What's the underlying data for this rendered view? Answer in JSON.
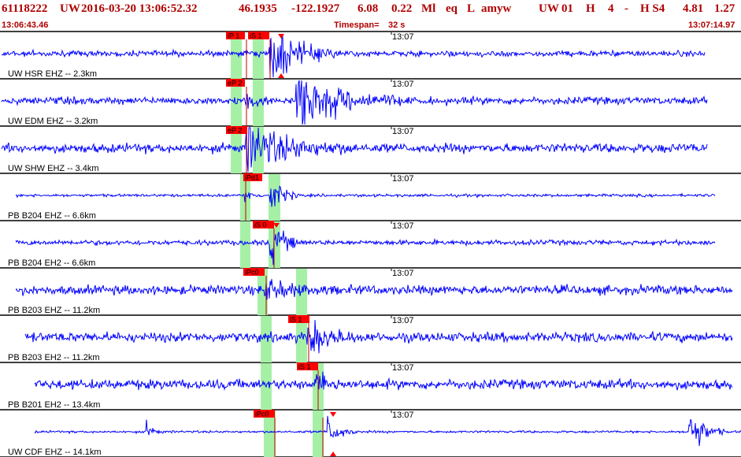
{
  "header": {
    "event_id": "61118222",
    "network": "UW",
    "datetime": "2016-03-20 13:06:52.32",
    "latitude": "46.1935",
    "longitude": "-122.1927",
    "depth": "6.08",
    "magnitude": "0.22",
    "mag_type": "Ml",
    "event_type": "eq",
    "location_type": "L",
    "author": "amyw",
    "origin_source": "UW",
    "version": "01",
    "quality": "H",
    "phase_count": "4",
    "dash": "-",
    "solution": "H S4",
    "value_a": "4.81",
    "value_b": "1.27",
    "start_time": "13:06:43.46",
    "timespan_label": "Timespan=",
    "timespan_value": "32 s",
    "end_time": "13:07:14.97"
  },
  "colors": {
    "header_text": "#b00000",
    "waveform": "#0000ff",
    "pick_box": "#ff0000",
    "pick_line": "#c00000",
    "window_band": "#a6f0a6",
    "separator": "#000000"
  },
  "traces": [
    {
      "label": "UW HSR EHZ -- 2.3km",
      "minute_label": "13:07",
      "picks": [
        {
          "text": "iP 1"
        },
        {
          "text": "iS 1"
        }
      ],
      "markers": [
        "triangle-down-icon",
        "triangle-up-icon"
      ]
    },
    {
      "label": "UW EDM EHZ -- 3.2km",
      "minute_label": "13:07",
      "picks": [
        {
          "text": "eP 2"
        }
      ],
      "markers": []
    },
    {
      "label": "UW SHW EHZ -- 3.4km",
      "minute_label": "13:07",
      "picks": [
        {
          "text": "eP 2"
        }
      ],
      "markers": []
    },
    {
      "label": "PB B204 EHZ -- 6.6km",
      "minute_label": "13:07",
      "picks": [
        {
          "text": "iPd1"
        }
      ],
      "markers": []
    },
    {
      "label": "PB B204 EH2 -- 6.6km",
      "minute_label": "13:07",
      "picks": [
        {
          "text": "iS 0"
        }
      ],
      "markers": [
        "triangle-down-icon"
      ]
    },
    {
      "label": "PB B203 EHZ -- 11.2km",
      "minute_label": "13:07",
      "picks": [
        {
          "text": "iPc0"
        }
      ],
      "markers": []
    },
    {
      "label": "PB B203 EH2 -- 11.2km",
      "minute_label": "13:07",
      "picks": [
        {
          "text": "iS 1"
        }
      ],
      "markers": []
    },
    {
      "label": "PB B201 EH2 -- 13.4km",
      "minute_label": "13:07",
      "picks": [
        {
          "text": "iS 1"
        }
      ],
      "markers": []
    },
    {
      "label": "UW CDF EHZ -- 14.1km",
      "minute_label": "13:07",
      "picks": [
        {
          "text": "iPc0"
        }
      ],
      "markers": [
        "triangle-down-icon",
        "triangle-up-icon"
      ]
    }
  ]
}
